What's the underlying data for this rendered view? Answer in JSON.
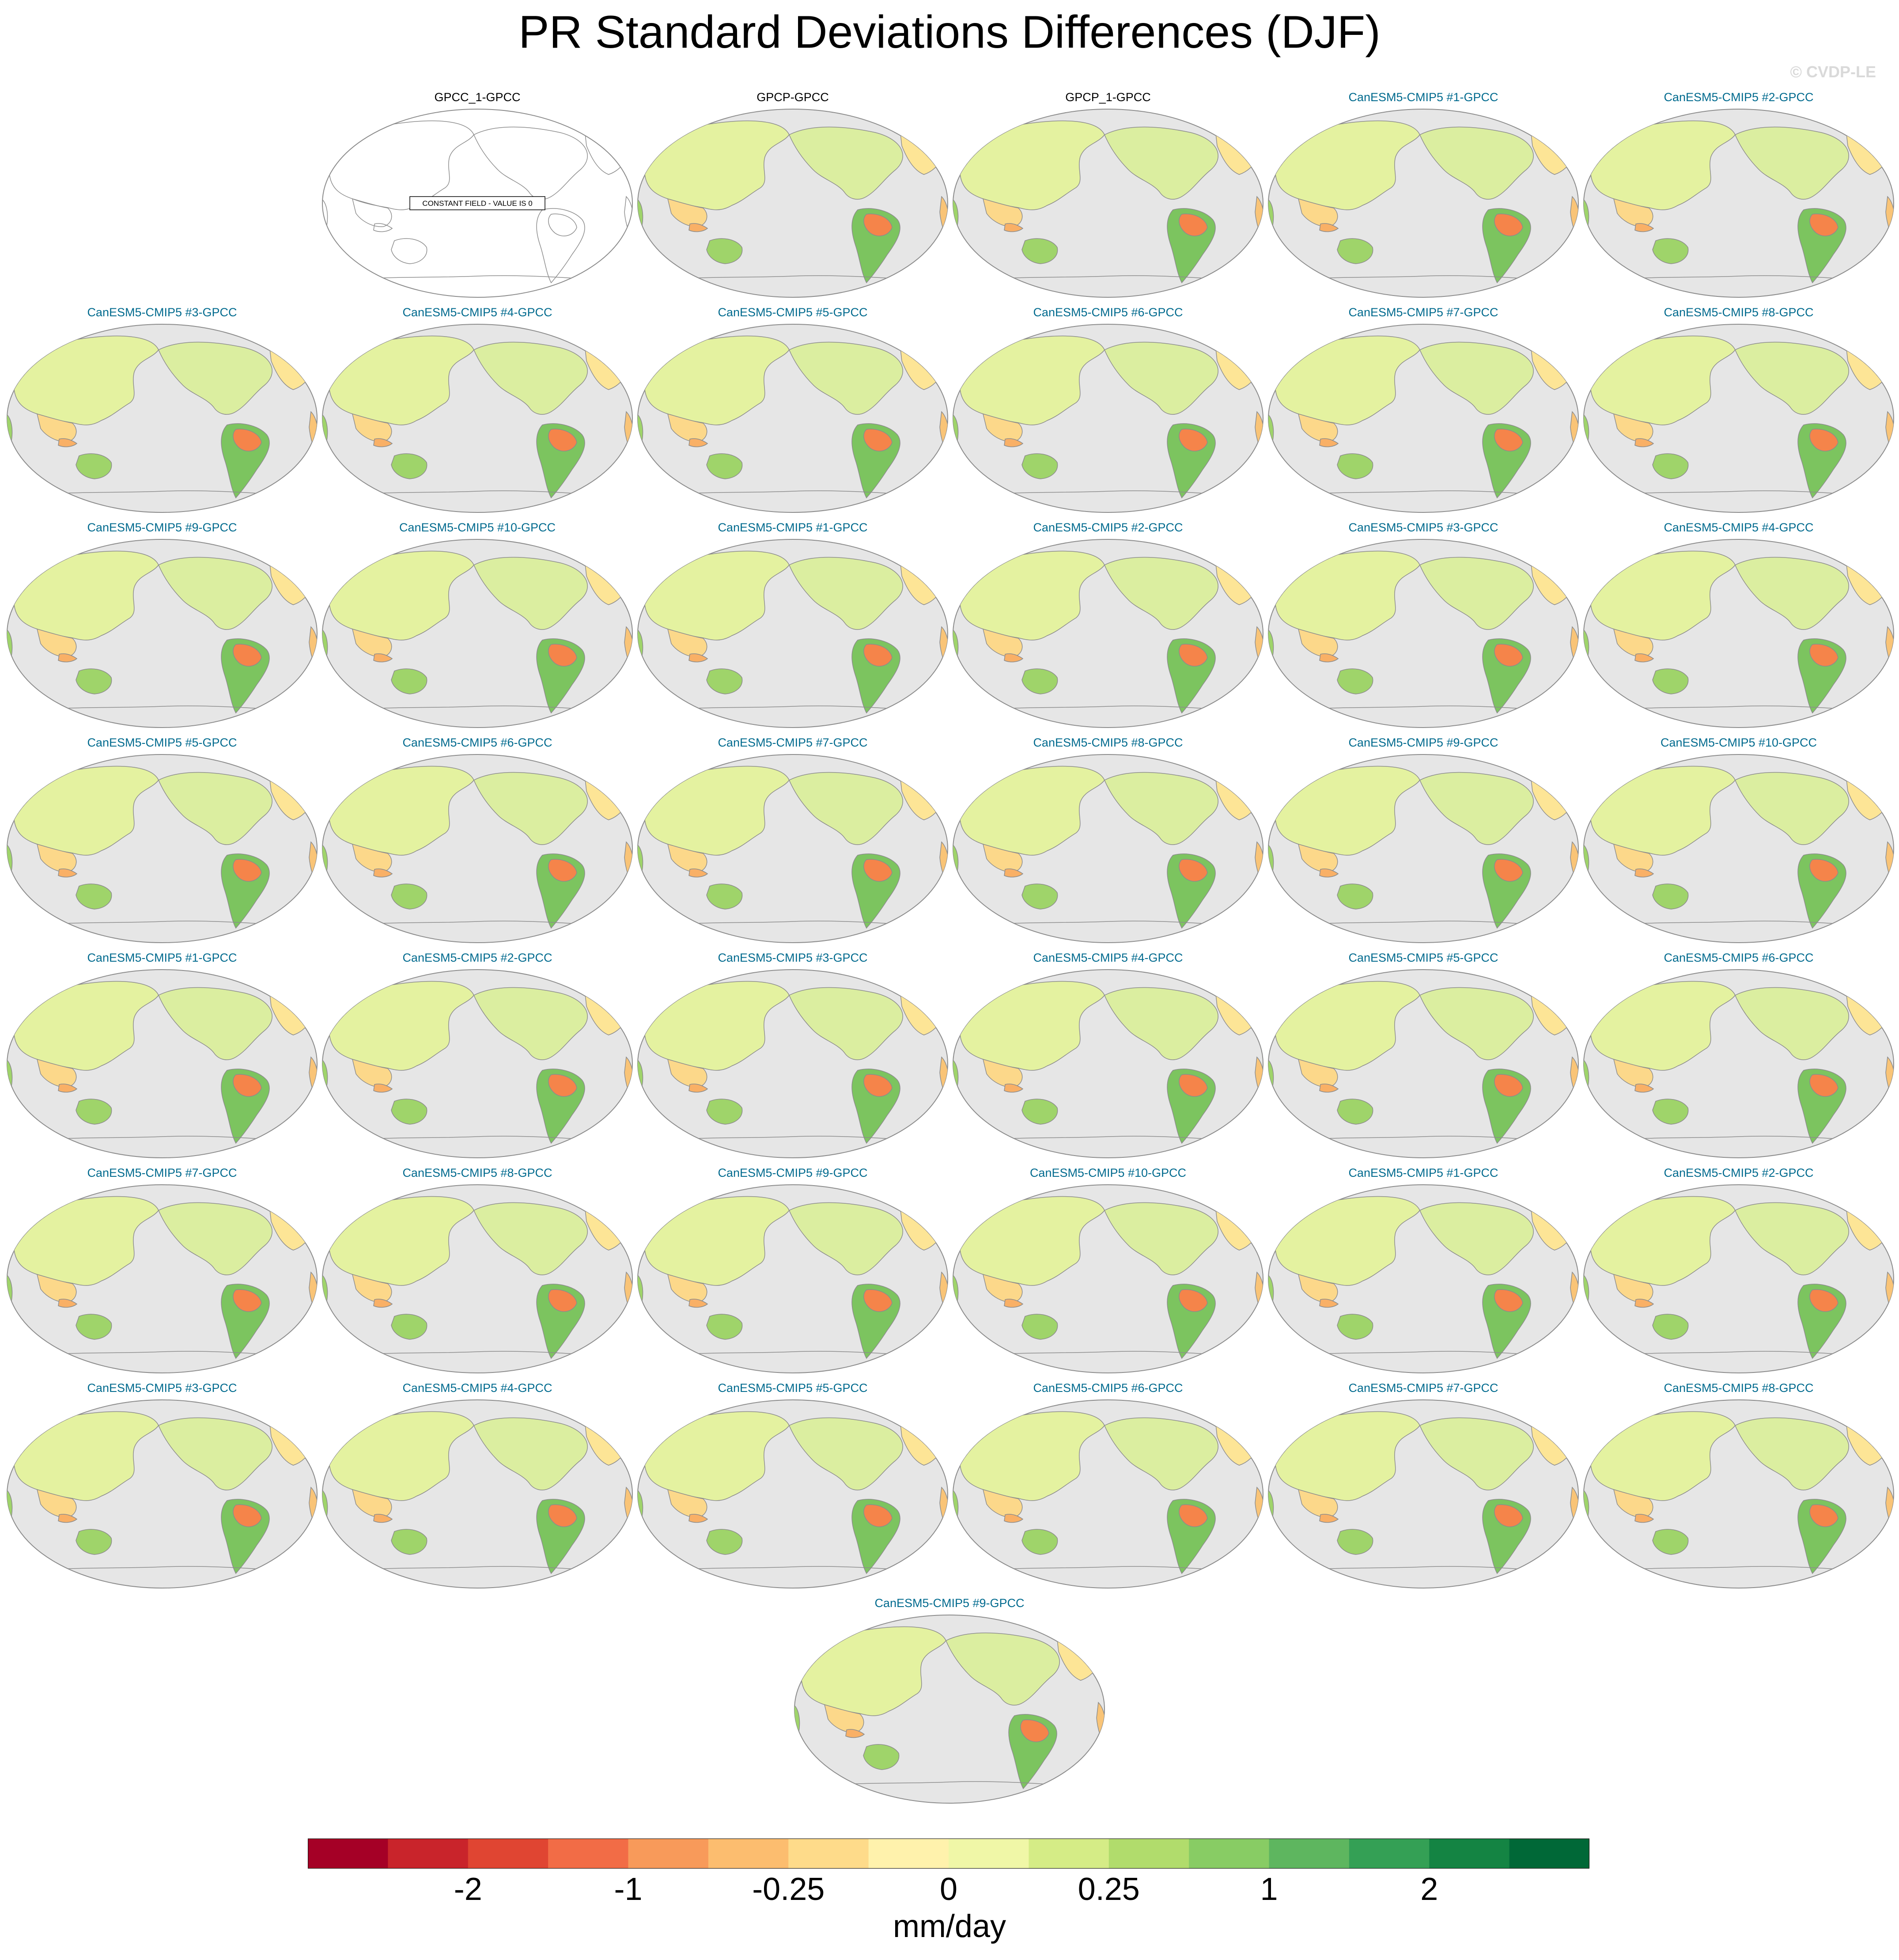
{
  "title": "PR Standard Deviations Differences (DJF)",
  "watermark": "© CVDP-LE",
  "constant_field_label": "CONSTANT FIELD - VALUE IS 0",
  "colors": {
    "ocean": "#e6e6e6",
    "coastline": "#8c8c8c",
    "obs_title": "#000000",
    "model_title": "#006a8e"
  },
  "panels": [
    {
      "label": "GPCC_1-GPCC",
      "kind": "obs",
      "constant": true
    },
    {
      "label": "GPCP-GPCC",
      "kind": "obs",
      "constant": false
    },
    {
      "label": "GPCP_1-GPCC",
      "kind": "obs",
      "constant": false
    },
    {
      "label": "CanESM5-CMIP5 #1-GPCC",
      "kind": "model",
      "constant": false
    },
    {
      "label": "CanESM5-CMIP5 #2-GPCC",
      "kind": "model",
      "constant": false
    },
    {
      "label": "CanESM5-CMIP5 #3-GPCC",
      "kind": "model",
      "constant": false
    },
    {
      "label": "CanESM5-CMIP5 #4-GPCC",
      "kind": "model",
      "constant": false
    },
    {
      "label": "CanESM5-CMIP5 #5-GPCC",
      "kind": "model",
      "constant": false
    },
    {
      "label": "CanESM5-CMIP5 #6-GPCC",
      "kind": "model",
      "constant": false
    },
    {
      "label": "CanESM5-CMIP5 #7-GPCC",
      "kind": "model",
      "constant": false
    },
    {
      "label": "CanESM5-CMIP5 #8-GPCC",
      "kind": "model",
      "constant": false
    },
    {
      "label": "CanESM5-CMIP5 #9-GPCC",
      "kind": "model",
      "constant": false
    },
    {
      "label": "CanESM5-CMIP5 #10-GPCC",
      "kind": "model",
      "constant": false
    },
    {
      "label": "CanESM5-CMIP5 #1-GPCC",
      "kind": "model",
      "constant": false
    },
    {
      "label": "CanESM5-CMIP5 #2-GPCC",
      "kind": "model",
      "constant": false
    },
    {
      "label": "CanESM5-CMIP5 #3-GPCC",
      "kind": "model",
      "constant": false
    },
    {
      "label": "CanESM5-CMIP5 #4-GPCC",
      "kind": "model",
      "constant": false
    },
    {
      "label": "CanESM5-CMIP5 #5-GPCC",
      "kind": "model",
      "constant": false
    },
    {
      "label": "CanESM5-CMIP5 #6-GPCC",
      "kind": "model",
      "constant": false
    },
    {
      "label": "CanESM5-CMIP5 #7-GPCC",
      "kind": "model",
      "constant": false
    },
    {
      "label": "CanESM5-CMIP5 #8-GPCC",
      "kind": "model",
      "constant": false
    },
    {
      "label": "CanESM5-CMIP5 #9-GPCC",
      "kind": "model",
      "constant": false
    },
    {
      "label": "CanESM5-CMIP5 #10-GPCC",
      "kind": "model",
      "constant": false
    },
    {
      "label": "CanESM5-CMIP5 #1-GPCC",
      "kind": "model",
      "constant": false
    },
    {
      "label": "CanESM5-CMIP5 #2-GPCC",
      "kind": "model",
      "constant": false
    },
    {
      "label": "CanESM5-CMIP5 #3-GPCC",
      "kind": "model",
      "constant": false
    },
    {
      "label": "CanESM5-CMIP5 #4-GPCC",
      "kind": "model",
      "constant": false
    },
    {
      "label": "CanESM5-CMIP5 #5-GPCC",
      "kind": "model",
      "constant": false
    },
    {
      "label": "CanESM5-CMIP5 #6-GPCC",
      "kind": "model",
      "constant": false
    },
    {
      "label": "CanESM5-CMIP5 #7-GPCC",
      "kind": "model",
      "constant": false
    },
    {
      "label": "CanESM5-CMIP5 #8-GPCC",
      "kind": "model",
      "constant": false
    },
    {
      "label": "CanESM5-CMIP5 #9-GPCC",
      "kind": "model",
      "constant": false
    },
    {
      "label": "CanESM5-CMIP5 #10-GPCC",
      "kind": "model",
      "constant": false
    },
    {
      "label": "CanESM5-CMIP5 #1-GPCC",
      "kind": "model",
      "constant": false
    },
    {
      "label": "CanESM5-CMIP5 #2-GPCC",
      "kind": "model",
      "constant": false
    },
    {
      "label": "CanESM5-CMIP5 #3-GPCC",
      "kind": "model",
      "constant": false
    },
    {
      "label": "CanESM5-CMIP5 #4-GPCC",
      "kind": "model",
      "constant": false
    },
    {
      "label": "CanESM5-CMIP5 #5-GPCC",
      "kind": "model",
      "constant": false
    },
    {
      "label": "CanESM5-CMIP5 #6-GPCC",
      "kind": "model",
      "constant": false
    },
    {
      "label": "CanESM5-CMIP5 #7-GPCC",
      "kind": "model",
      "constant": false
    },
    {
      "label": "CanESM5-CMIP5 #8-GPCC",
      "kind": "model",
      "constant": false
    },
    {
      "label": "CanESM5-CMIP5 #9-GPCC",
      "kind": "model",
      "constant": false
    }
  ],
  "colorbar": {
    "units": "mm/day",
    "colors": [
      "#a50026",
      "#c9242b",
      "#e04532",
      "#f26c46",
      "#f89a5a",
      "#fcbd6f",
      "#fedb8a",
      "#fff2ac",
      "#f0f7a7",
      "#d5ec86",
      "#b1dc6c",
      "#88cc64",
      "#5eb65f",
      "#34a055",
      "#148443",
      "#006837"
    ],
    "tick_labels": [
      "-2",
      "-1",
      "-0.25",
      "0",
      "0.25",
      "1",
      "2"
    ],
    "tick_boundary_index": [
      2,
      4,
      6,
      8,
      10,
      12,
      14
    ]
  }
}
